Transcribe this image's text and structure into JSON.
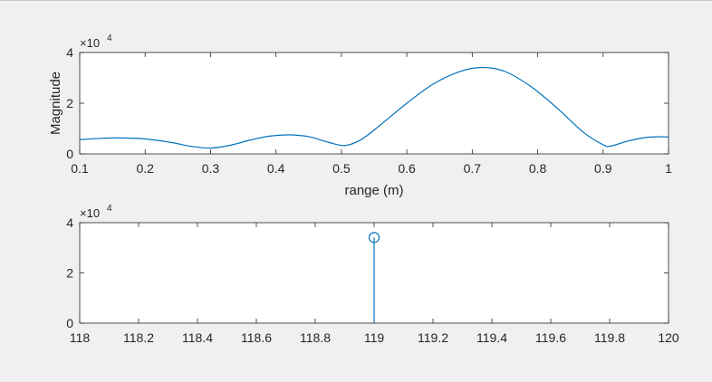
{
  "chart_data": [
    {
      "type": "line",
      "title": "",
      "xlabel": "range (m)",
      "ylabel": "Magnitude",
      "xlim": [
        0.1,
        1
      ],
      "ylim": [
        0,
        40000
      ],
      "xticks": [
        0.1,
        0.2,
        0.3,
        0.4,
        0.5,
        0.6,
        0.7,
        0.8,
        0.9,
        1
      ],
      "xtick_labels": [
        "0.1",
        "0.2",
        "0.3",
        "0.4",
        "0.5",
        "0.6",
        "0.7",
        "0.8",
        "0.9",
        "1"
      ],
      "yticks": [
        0,
        20000,
        40000
      ],
      "ytick_labels": [
        "0",
        "2",
        "4"
      ],
      "y_exponent_base": "×10",
      "y_exponent_power": "4",
      "grid": false,
      "color": "#0072bd",
      "series": [
        {
          "x": [
            0.1,
            0.13,
            0.16,
            0.2,
            0.24,
            0.27,
            0.3,
            0.33,
            0.36,
            0.39,
            0.42,
            0.45,
            0.48,
            0.505,
            0.53,
            0.56,
            0.6,
            0.64,
            0.68,
            0.715,
            0.75,
            0.79,
            0.83,
            0.87,
            0.9,
            0.912,
            0.94,
            0.97,
            1.0
          ],
          "y": [
            5600,
            6100,
            6300,
            5900,
            4500,
            3000,
            2300,
            3400,
            5400,
            7000,
            7500,
            6800,
            4600,
            3300,
            5600,
            11500,
            20000,
            27500,
            32400,
            34100,
            32500,
            26500,
            18000,
            8500,
            3600,
            3100,
            5200,
            6600,
            6700
          ]
        }
      ]
    },
    {
      "type": "scatter",
      "subtype": "stem",
      "title": "",
      "xlabel": "",
      "ylabel": "",
      "xlim": [
        118,
        120
      ],
      "ylim": [
        0,
        40000
      ],
      "xticks": [
        118,
        118.2,
        118.4,
        118.6,
        118.8,
        119,
        119.2,
        119.4,
        119.6,
        119.8,
        120
      ],
      "xtick_labels": [
        "118",
        "118.2",
        "118.4",
        "118.6",
        "118.8",
        "119",
        "119.2",
        "119.4",
        "119.6",
        "119.8",
        "120"
      ],
      "yticks": [
        0,
        20000,
        40000
      ],
      "ytick_labels": [
        "0",
        "2",
        "4"
      ],
      "y_exponent_base": "×10",
      "y_exponent_power": "4",
      "grid": false,
      "color": "#0072bd",
      "series": [
        {
          "x": [
            119
          ],
          "y": [
            34100
          ]
        }
      ]
    }
  ]
}
